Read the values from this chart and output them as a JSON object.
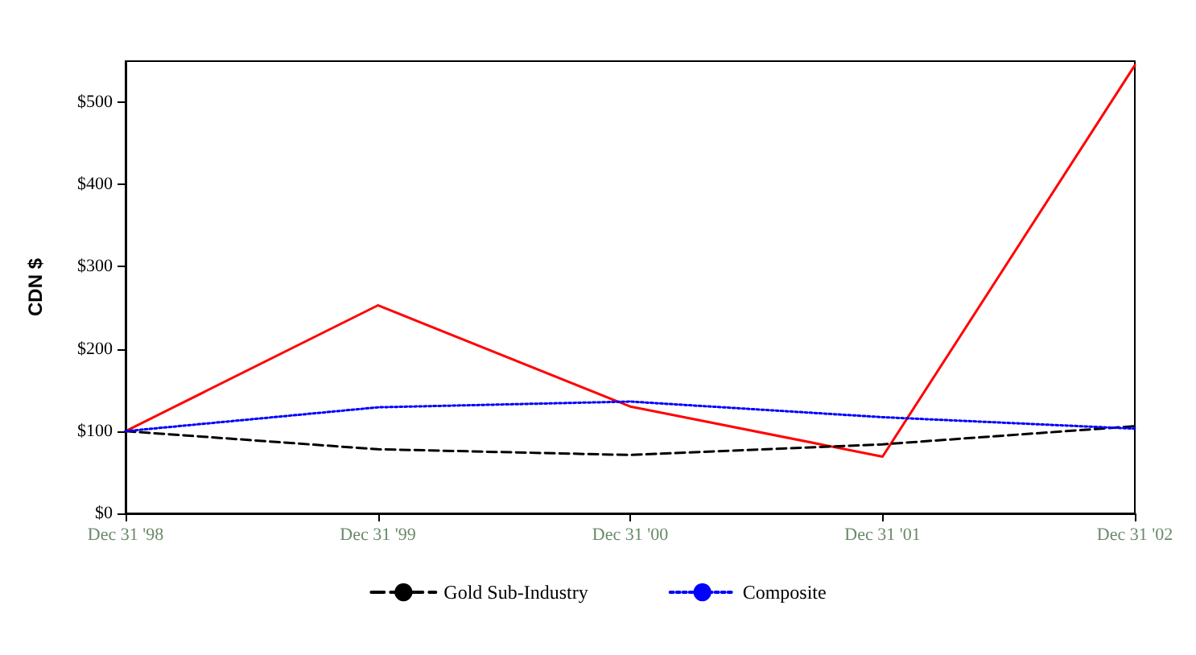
{
  "chart_data": {
    "type": "line",
    "ylabel": "CDN $",
    "categories": [
      "Dec 31 '98",
      "Dec 31 '99",
      "Dec 31 '00",
      "Dec 31 '01",
      "Dec 31 '02"
    ],
    "series": [
      {
        "color": "#ff0000",
        "line_style": "solid",
        "values": [
          100,
          253,
          130,
          69,
          545
        ]
      },
      {
        "name": "Gold Sub-Industry",
        "color": "#000000",
        "line_style": "dashed",
        "values": [
          100,
          78,
          71,
          84,
          106
        ]
      },
      {
        "name": "Composite",
        "color": "#0000ff",
        "line_style": "dotted",
        "values": [
          100,
          129,
          136,
          117,
          103
        ]
      }
    ],
    "ylim": [
      0,
      550
    ],
    "yticks": [
      {
        "value": 0,
        "label": "$0"
      },
      {
        "value": 100,
        "label": "$100"
      },
      {
        "value": 200,
        "label": "$200"
      },
      {
        "value": 300,
        "label": "$300"
      },
      {
        "value": 400,
        "label": "$400"
      },
      {
        "value": 500,
        "label": "$500"
      }
    ],
    "grid": false,
    "legend": "bottom",
    "marker": "none"
  }
}
